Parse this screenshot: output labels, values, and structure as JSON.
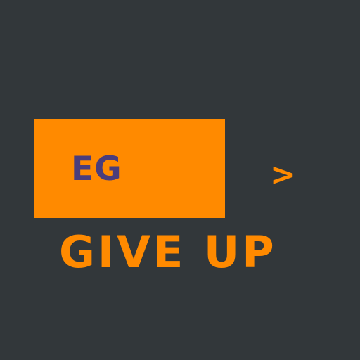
{
  "logo": {
    "text": "EG",
    "text_color": "#4a3d7c",
    "box_color": "#ff8a00"
  },
  "arrow": {
    "glyph": ">"
  },
  "tagline": {
    "text": "GIVE UP",
    "color": "#ff8a00"
  },
  "colors": {
    "background": "#32373a",
    "accent": "#ff8a00"
  }
}
